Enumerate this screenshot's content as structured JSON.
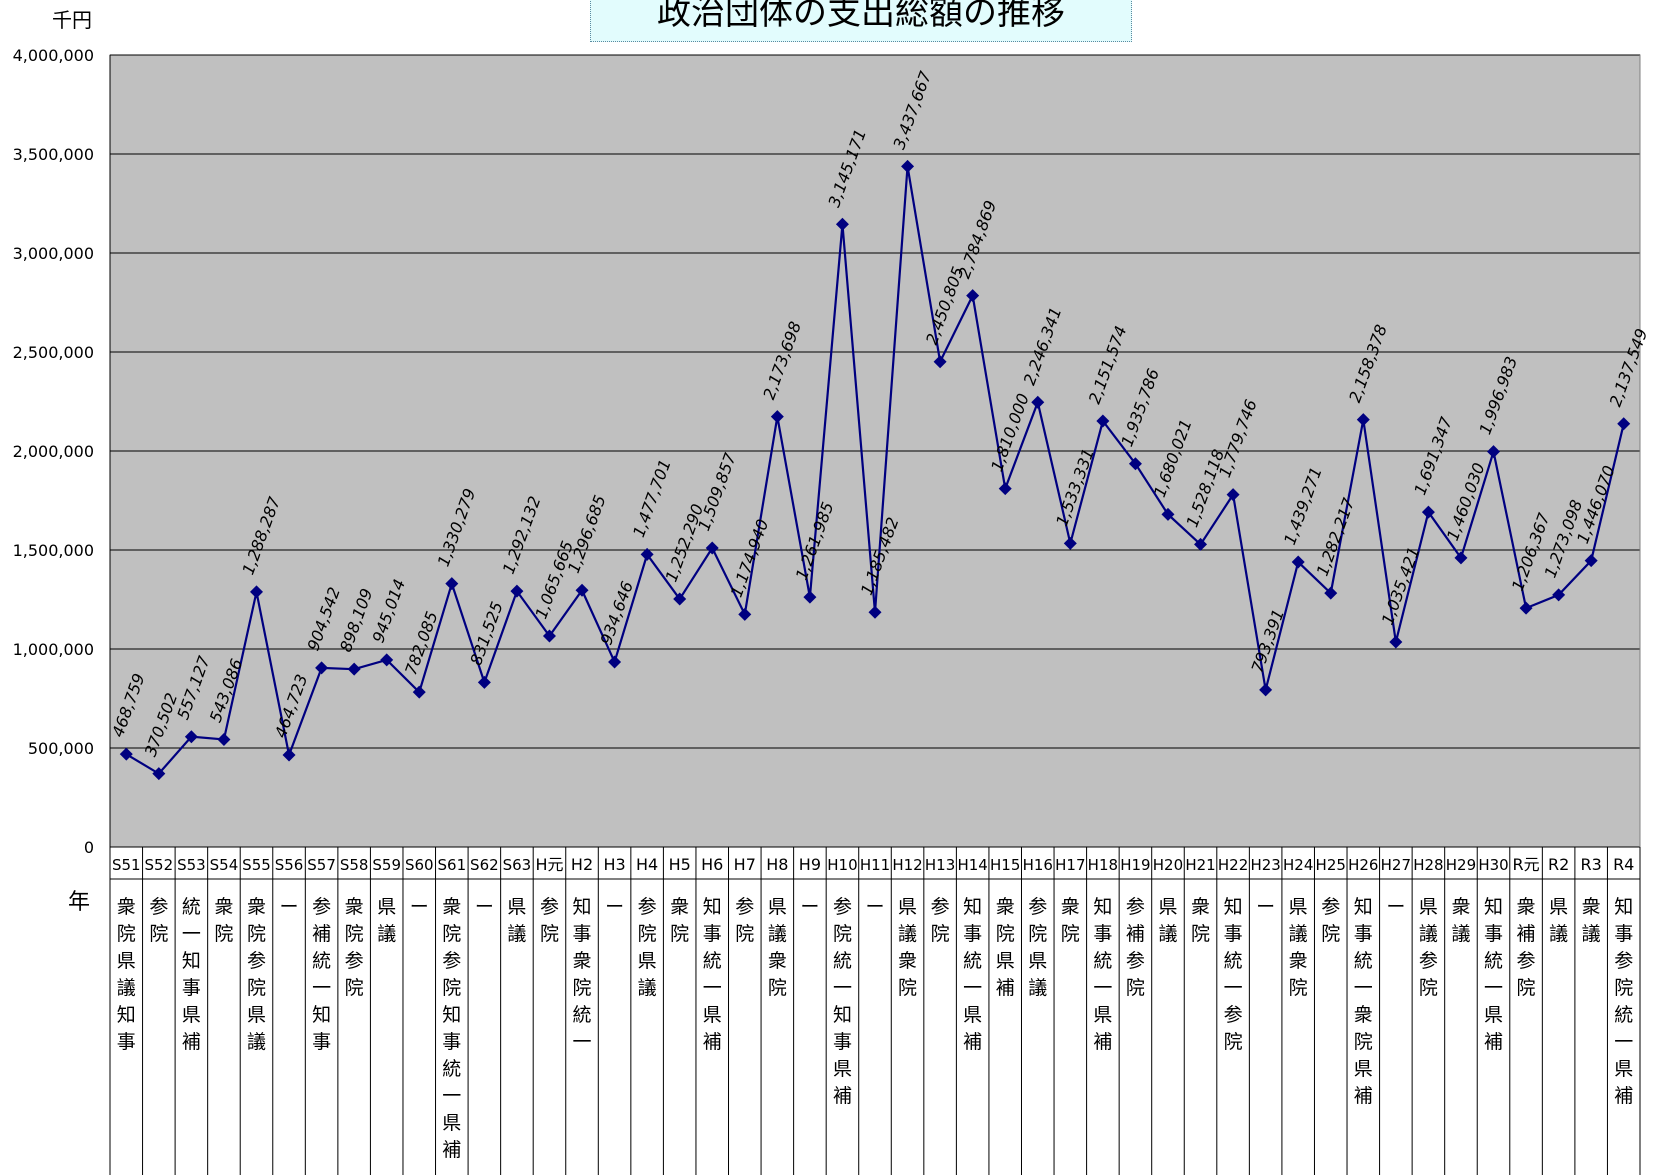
{
  "chart_data": {
    "type": "line",
    "title": "政治団体の支出総額の推移",
    "ylabel": "千円",
    "xlabel": "年",
    "ylim": [
      0,
      4000000
    ],
    "yticks": [
      "0",
      "500,000",
      "1,000,000",
      "1,500,000",
      "2,000,000",
      "2,500,000",
      "3,000,000",
      "3,500,000",
      "4,000,000"
    ],
    "grid": true,
    "line_color": "#000080",
    "plot_bg": "#c0c0c0",
    "categories": [
      "S51",
      "S52",
      "S53",
      "S54",
      "S55",
      "S56",
      "S57",
      "S58",
      "S59",
      "S60",
      "S61",
      "S62",
      "S63",
      "H元",
      "H2",
      "H3",
      "H4",
      "H5",
      "H6",
      "H7",
      "H8",
      "H9",
      "H10",
      "H11",
      "H12",
      "H13",
      "H14",
      "H15",
      "H16",
      "H17",
      "H18",
      "H19",
      "H20",
      "H21",
      "H22",
      "H23",
      "H24",
      "H25",
      "H26",
      "H27",
      "H28",
      "H29",
      "H30",
      "R元",
      "R2",
      "R3",
      "R4"
    ],
    "values": [
      468759,
      370502,
      557127,
      543086,
      1288287,
      464723,
      904542,
      898109,
      945014,
      782085,
      1330279,
      831525,
      1292132,
      1065665,
      1296685,
      934646,
      1477701,
      1252290,
      1509857,
      1174940,
      2173698,
      1261985,
      3145171,
      1185482,
      3437667,
      2450805,
      2784869,
      1810000,
      2246341,
      1533331,
      2151574,
      1935786,
      1680021,
      1528118,
      1779746,
      793391,
      1439271,
      1282217,
      2158378,
      1035421,
      1691347,
      1460030,
      1996983,
      1206367,
      1273098,
      1446070,
      2137549
    ],
    "data_labels": [
      "468,759",
      "370,502",
      "557,127",
      "543,086",
      "1,288,287",
      "464,723",
      "904,542",
      "898,109",
      "945,014",
      "782,085",
      "1,330,279",
      "831,525",
      "1,292,132",
      "1,065,665",
      "1,296,685",
      "934,646",
      "1,477,701",
      "1,252,290",
      "1,509,857",
      "1,174,940",
      "2,173,698",
      "1,261,985",
      "3,145,171",
      "1,185,482",
      "3,437,667",
      "2,450,805",
      "2,784,869",
      "1,810,000",
      "2,246,341",
      "1,533,331",
      "2,151,574",
      "1,935,786",
      "1,680,021",
      "1,528,118",
      "1,779,746",
      "793,391",
      "1,439,271",
      "1,282,217",
      "2,158,378",
      "1,035,421",
      "1,691,347",
      "1,460,030",
      "1,996,983",
      "1,206,367",
      "1,273,098",
      "1,446,070",
      "2,137,549"
    ],
    "elections": [
      "衆院県議知事",
      "参院",
      "統一知事県補",
      "衆院",
      "衆院参院県議",
      "ー",
      "参補統一知事",
      "衆院参院",
      "県議",
      "ー",
      "衆院参院知事統一県補",
      "ー",
      "県議",
      "参院",
      "知事衆院統一",
      "ー",
      "参院県議",
      "衆院",
      "知事統一県補",
      "参院",
      "県議衆院",
      "ー",
      "参院統一知事県補",
      "ー",
      "県議衆院",
      "参院",
      "知事統一県補",
      "衆院県補",
      "参院県議",
      "衆院",
      "知事統一県補",
      "参補参院",
      "県議",
      "衆院",
      "知事統一参院",
      "ー",
      "県議衆院",
      "参院",
      "知事統一衆院県補",
      "ー",
      "県議参院",
      "衆議",
      "知事統一県補",
      "衆補参院",
      "県議",
      "衆議",
      "知事参院統一県補"
    ]
  }
}
